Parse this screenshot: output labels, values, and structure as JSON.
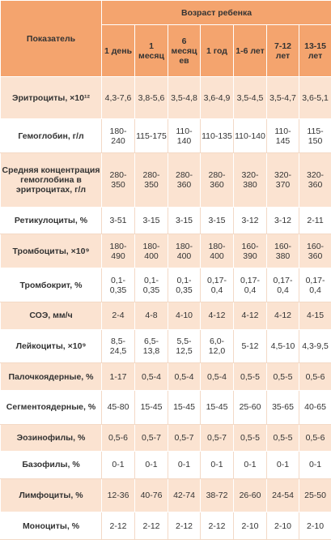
{
  "header": {
    "indicator": "Показатель",
    "age_group": "Возраст ребенка",
    "ages": [
      "1 день",
      "1 месяц",
      "6 месяц ев",
      "1 год",
      "1-6 лет",
      "7-12 лет",
      "13-15 лет"
    ]
  },
  "rows": [
    {
      "label": "Эритроциты, ×10¹²",
      "values": [
        "4,3-7,6",
        "3,8-5,6",
        "3,5-4,8",
        "3,6-4,9",
        "3,5-4,5",
        "3,5-4,7",
        "3,6-5,1"
      ]
    },
    {
      "label": "Гемоглобин, г/л",
      "values": [
        "180-240",
        "115-175",
        "110-140",
        "110-135",
        "110-140",
        "110-145",
        "115-150"
      ]
    },
    {
      "label": "Средняя концентрация гемоглобина в эритроцитах, г/л",
      "values": [
        "280-350",
        "280-350",
        "280-360",
        "280-360",
        "320-380",
        "320-370",
        "320-360"
      ]
    },
    {
      "label": "Ретикулоциты, %",
      "values": [
        "3-51",
        "3-15",
        "3-15",
        "3-15",
        "3-12",
        "3-12",
        "2-11"
      ]
    },
    {
      "label": "Тромбоциты, ×10⁹",
      "values": [
        "180-490",
        "180-400",
        "180-400",
        "180-400",
        "160-390",
        "160-380",
        "160-360"
      ]
    },
    {
      "label": "Тромбокрит, %",
      "values": [
        "0,1-0,35",
        "0,1-0,35",
        "0,1-0,35",
        "0,17-0,4",
        "0,17-0,4",
        "0,17-0,4",
        "0,17-0,4"
      ]
    },
    {
      "label": "СОЭ, мм/ч",
      "values": [
        "2-4",
        "4-8",
        "4-10",
        "4-12",
        "4-12",
        "4-12",
        "4-15"
      ]
    },
    {
      "label": "Лейкоциты, ×10⁹",
      "values": [
        "8,5-24,5",
        "6,5-13,8",
        "5,5-12,5",
        "6,0-12,0",
        "5-12",
        "4,5-10",
        "4,3-9,5"
      ]
    },
    {
      "label": "Палочкоядерные, %",
      "values": [
        "1-17",
        "0,5-4",
        "0,5-4",
        "0,5-4",
        "0,5-5",
        "0,5-5",
        "0,5-6"
      ]
    },
    {
      "label": "Сегментоядерные, %",
      "values": [
        "45-80",
        "15-45",
        "15-45",
        "15-45",
        "25-60",
        "35-65",
        "40-65"
      ]
    },
    {
      "label": "Эозинофилы, %",
      "values": [
        "0,5-6",
        "0,5-7",
        "0,5-7",
        "0,5-7",
        "0,5-5",
        "0,5-5",
        "0,5-6"
      ]
    },
    {
      "label": "Базофилы, %",
      "values": [
        "0-1",
        "0-1",
        "0-1",
        "0-1",
        "0-1",
        "0-1",
        "0-1"
      ]
    },
    {
      "label": "Лимфоциты, %",
      "values": [
        "12-36",
        "40-76",
        "42-74",
        "38-72",
        "26-60",
        "24-54",
        "25-50"
      ]
    },
    {
      "label": "Моноциты, %",
      "values": [
        "2-12",
        "2-12",
        "2-12",
        "2-12",
        "2-10",
        "2-10",
        "2-10"
      ]
    }
  ],
  "colors": {
    "header_bg": "#f4a46e",
    "odd_row_bg": "#fbe3d1",
    "even_row_bg": "#ffffff",
    "header_text": "#ffffff"
  }
}
